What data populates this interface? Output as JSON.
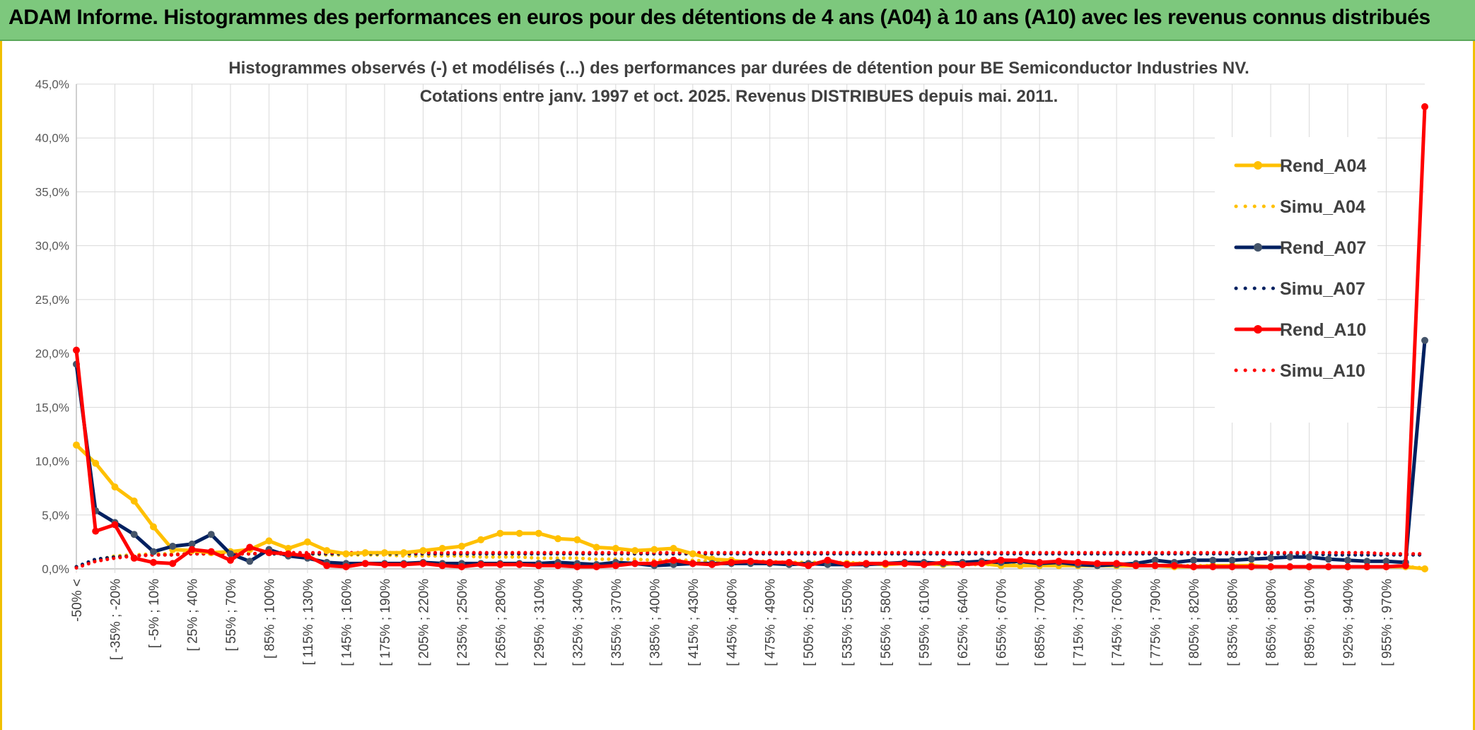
{
  "header": {
    "title": "ADAM Informe. Histogrammes des performances en euros pour des détentions de 4 ans (A04) à 10 ans (A10) avec les revenus connus distribués"
  },
  "chart_data": {
    "type": "line",
    "title": "Histogrammes observés (-) et modélisés (...) des performances par durées de détention pour BE Semiconductor Industries NV.",
    "subtitle": "Cotations entre janv. 1997 et oct. 2025. Revenus DISTRIBUES depuis mai. 2011.",
    "xlabel": "",
    "ylabel": "",
    "ylim": [
      0,
      45
    ],
    "grid": true,
    "legend_position": "right",
    "y_ticks": [
      "0,0%",
      "5,0%",
      "10,0%",
      "15,0%",
      "20,0%",
      "25,0%",
      "30,0%",
      "35,0%",
      "40,0%",
      "45,0%"
    ],
    "x_tick_labels": [
      "-50% <",
      "[ -35% ; -20%",
      "[ -5% ; 10%",
      "[ 25% ; 40%",
      "[ 55% ; 70%",
      "[ 85% ; 100%",
      "[ 115% ; 130%",
      "[ 145% ; 160%",
      "[ 175% ; 190%",
      "[ 205% ; 220%",
      "[ 235% ; 250%",
      "[ 265% ; 280%",
      "[ 295% ; 310%",
      "[ 325% ; 340%",
      "[ 355% ; 370%",
      "[ 385% ; 400%",
      "[ 415% ; 430%",
      "[ 445% ; 460%",
      "[ 475% ; 490%",
      "[ 505% ; 520%",
      "[ 535% ; 550%",
      "[ 565% ; 580%",
      "[ 595% ; 610%",
      "[ 625% ; 640%",
      "[ 655% ; 670%",
      "[ 685% ; 700%",
      "[ 715% ; 730%",
      "[ 745% ; 760%",
      "[ 775% ; 790%",
      "[ 805% ; 820%",
      "[ 835% ; 850%",
      "[ 865% ; 880%",
      "[ 895% ; 910%",
      "[ 925% ; 940%",
      "[ 955% ; 970%"
    ],
    "x_tick_step": 2,
    "n_categories": 71,
    "series": [
      {
        "name": "Rend_A04",
        "color": "#ffc000",
        "style": "solid",
        "markers": true,
        "values": [
          11.5,
          9.8,
          7.6,
          6.3,
          3.9,
          1.8,
          1.7,
          1.5,
          1.6,
          1.8,
          2.6,
          1.9,
          2.5,
          1.7,
          1.4,
          1.5,
          1.5,
          1.5,
          1.7,
          1.9,
          2.1,
          2.7,
          3.3,
          3.3,
          3.3,
          2.8,
          2.7,
          2.0,
          1.9,
          1.7,
          1.8,
          1.9,
          1.4,
          0.9,
          0.8,
          0.6,
          0.5,
          0.5,
          0.5,
          0.5,
          0.5,
          0.5,
          0.4,
          0.5,
          0.5,
          0.4,
          0.5,
          0.5,
          0.3,
          0.3,
          0.3,
          0.3,
          0.3,
          0.3,
          0.3,
          0.3,
          0.3,
          0.2,
          0.2,
          0.3,
          0.3,
          0.3,
          0.2,
          0.2,
          0.2,
          0.2,
          0.2,
          0.2,
          0.2,
          0.2,
          0.0
        ]
      },
      {
        "name": "Simu_A04",
        "color": "#ffc000",
        "style": "dotted",
        "markers": false,
        "values": [
          0.2,
          0.8,
          1.2,
          1.3,
          1.4,
          1.4,
          1.4,
          1.4,
          1.4,
          1.4,
          1.4,
          1.4,
          1.4,
          1.3,
          1.3,
          1.3,
          1.3,
          1.2,
          1.2,
          1.2,
          1.2,
          1.1,
          1.1,
          1.1,
          1.0,
          1.0,
          1.0,
          0.9,
          0.9,
          0.9,
          0.8,
          0.8,
          0.8,
          0.7,
          0.7,
          0.7,
          0.7,
          0.6,
          0.6,
          0.6,
          0.6,
          0.5,
          0.5,
          0.5,
          0.5,
          0.5,
          0.4,
          0.4,
          0.4,
          0.4,
          0.4,
          0.4,
          0.3,
          0.3,
          0.3,
          0.3,
          0.3,
          0.3,
          0.3,
          0.3,
          0.2,
          0.2,
          0.2,
          0.2,
          0.2,
          0.2,
          0.2,
          0.2,
          0.2,
          0.2,
          0.1
        ]
      },
      {
        "name": "Rend_A07",
        "color": "#002060",
        "style": "solid",
        "markers": true,
        "values": [
          19.0,
          5.4,
          4.3,
          3.2,
          1.6,
          2.1,
          2.3,
          3.2,
          1.4,
          0.7,
          1.8,
          1.2,
          1.0,
          0.6,
          0.5,
          0.5,
          0.5,
          0.5,
          0.6,
          0.5,
          0.5,
          0.5,
          0.5,
          0.5,
          0.5,
          0.6,
          0.5,
          0.4,
          0.6,
          0.5,
          0.3,
          0.4,
          0.5,
          0.5,
          0.5,
          0.5,
          0.5,
          0.4,
          0.5,
          0.4,
          0.4,
          0.4,
          0.5,
          0.6,
          0.6,
          0.5,
          0.6,
          0.7,
          0.6,
          0.7,
          0.5,
          0.6,
          0.4,
          0.3,
          0.4,
          0.5,
          0.8,
          0.6,
          0.8,
          0.8,
          0.8,
          0.9,
          1.0,
          1.1,
          1.1,
          0.9,
          0.8,
          0.7,
          0.7,
          0.6,
          21.2
        ]
      },
      {
        "name": "Simu_A07",
        "color": "#002060",
        "style": "dotted",
        "markers": false,
        "values": [
          0.2,
          0.9,
          1.1,
          1.2,
          1.3,
          1.3,
          1.4,
          1.4,
          1.4,
          1.4,
          1.4,
          1.4,
          1.4,
          1.4,
          1.4,
          1.4,
          1.4,
          1.4,
          1.4,
          1.4,
          1.4,
          1.4,
          1.4,
          1.4,
          1.4,
          1.4,
          1.4,
          1.4,
          1.4,
          1.4,
          1.4,
          1.4,
          1.4,
          1.4,
          1.4,
          1.4,
          1.4,
          1.4,
          1.4,
          1.4,
          1.4,
          1.4,
          1.4,
          1.4,
          1.4,
          1.4,
          1.4,
          1.4,
          1.4,
          1.4,
          1.4,
          1.4,
          1.4,
          1.4,
          1.4,
          1.4,
          1.4,
          1.4,
          1.4,
          1.4,
          1.4,
          1.4,
          1.4,
          1.4,
          1.4,
          1.3,
          1.3,
          1.3,
          1.3,
          1.3,
          1.3
        ]
      },
      {
        "name": "Rend_A10",
        "color": "#ff0000",
        "style": "solid",
        "markers": true,
        "values": [
          20.3,
          3.5,
          4.1,
          1.0,
          0.6,
          0.5,
          1.8,
          1.6,
          0.8,
          2.0,
          1.5,
          1.4,
          1.2,
          0.3,
          0.2,
          0.5,
          0.4,
          0.4,
          0.5,
          0.3,
          0.2,
          0.4,
          0.4,
          0.4,
          0.3,
          0.3,
          0.2,
          0.2,
          0.3,
          0.5,
          0.5,
          0.8,
          0.5,
          0.4,
          0.6,
          0.7,
          0.6,
          0.6,
          0.3,
          0.8,
          0.4,
          0.5,
          0.5,
          0.5,
          0.4,
          0.6,
          0.4,
          0.5,
          0.8,
          0.8,
          0.6,
          0.7,
          0.6,
          0.5,
          0.5,
          0.3,
          0.3,
          0.3,
          0.2,
          0.2,
          0.2,
          0.2,
          0.2,
          0.2,
          0.2,
          0.2,
          0.2,
          0.2,
          0.2,
          0.3,
          42.9
        ]
      },
      {
        "name": "Simu_A10",
        "color": "#ff0000",
        "style": "dotted",
        "markers": false,
        "values": [
          0.1,
          0.7,
          1.0,
          1.2,
          1.3,
          1.3,
          1.4,
          1.4,
          1.4,
          1.4,
          1.5,
          1.5,
          1.5,
          1.5,
          1.5,
          1.5,
          1.5,
          1.5,
          1.5,
          1.5,
          1.5,
          1.5,
          1.5,
          1.5,
          1.5,
          1.5,
          1.5,
          1.5,
          1.5,
          1.5,
          1.5,
          1.5,
          1.5,
          1.5,
          1.5,
          1.5,
          1.5,
          1.5,
          1.5,
          1.5,
          1.5,
          1.5,
          1.5,
          1.5,
          1.5,
          1.5,
          1.5,
          1.5,
          1.5,
          1.5,
          1.5,
          1.5,
          1.5,
          1.5,
          1.5,
          1.5,
          1.5,
          1.5,
          1.5,
          1.5,
          1.5,
          1.5,
          1.5,
          1.5,
          1.5,
          1.5,
          1.5,
          1.5,
          1.4,
          1.4,
          1.4
        ]
      }
    ]
  }
}
